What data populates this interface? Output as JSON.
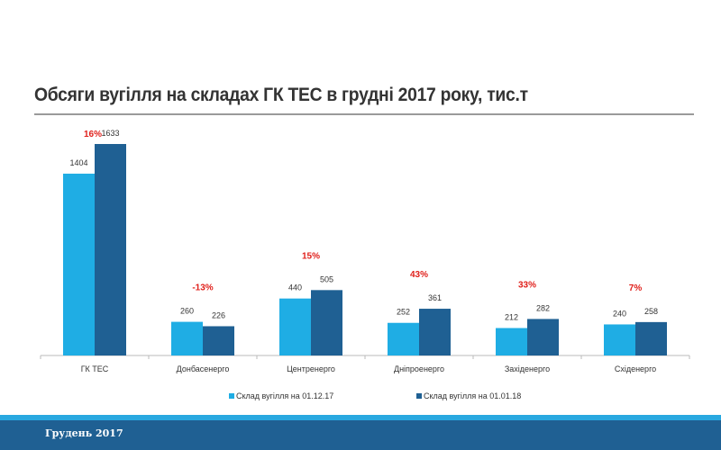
{
  "chart_data": {
    "type": "bar",
    "title": "Обсяги вугілля на складах ГК ТЕС в грудні 2017 року, тис.т",
    "categories": [
      "ГК ТЕС",
      "Донбасенерго",
      "Центренерго",
      "Дніпроенерго",
      "Західенерго",
      "Східенерго"
    ],
    "series": [
      {
        "name": "Склад вугілля на 01.12.17",
        "color": "#1fade4",
        "values": [
          1404,
          260,
          440,
          252,
          212,
          240
        ]
      },
      {
        "name": "Склад вугілля на 01.01.18",
        "color": "#1f6093",
        "values": [
          1633,
          226,
          505,
          361,
          282,
          258
        ]
      }
    ],
    "change_labels": [
      "16%",
      "-13%",
      "15%",
      "43%",
      "33%",
      "7%"
    ],
    "change_color": "#e0201b",
    "ylim": [
      0,
      1633
    ],
    "grid": false,
    "legend": "bottom"
  },
  "footer": {
    "text": "Грудень 2017"
  }
}
